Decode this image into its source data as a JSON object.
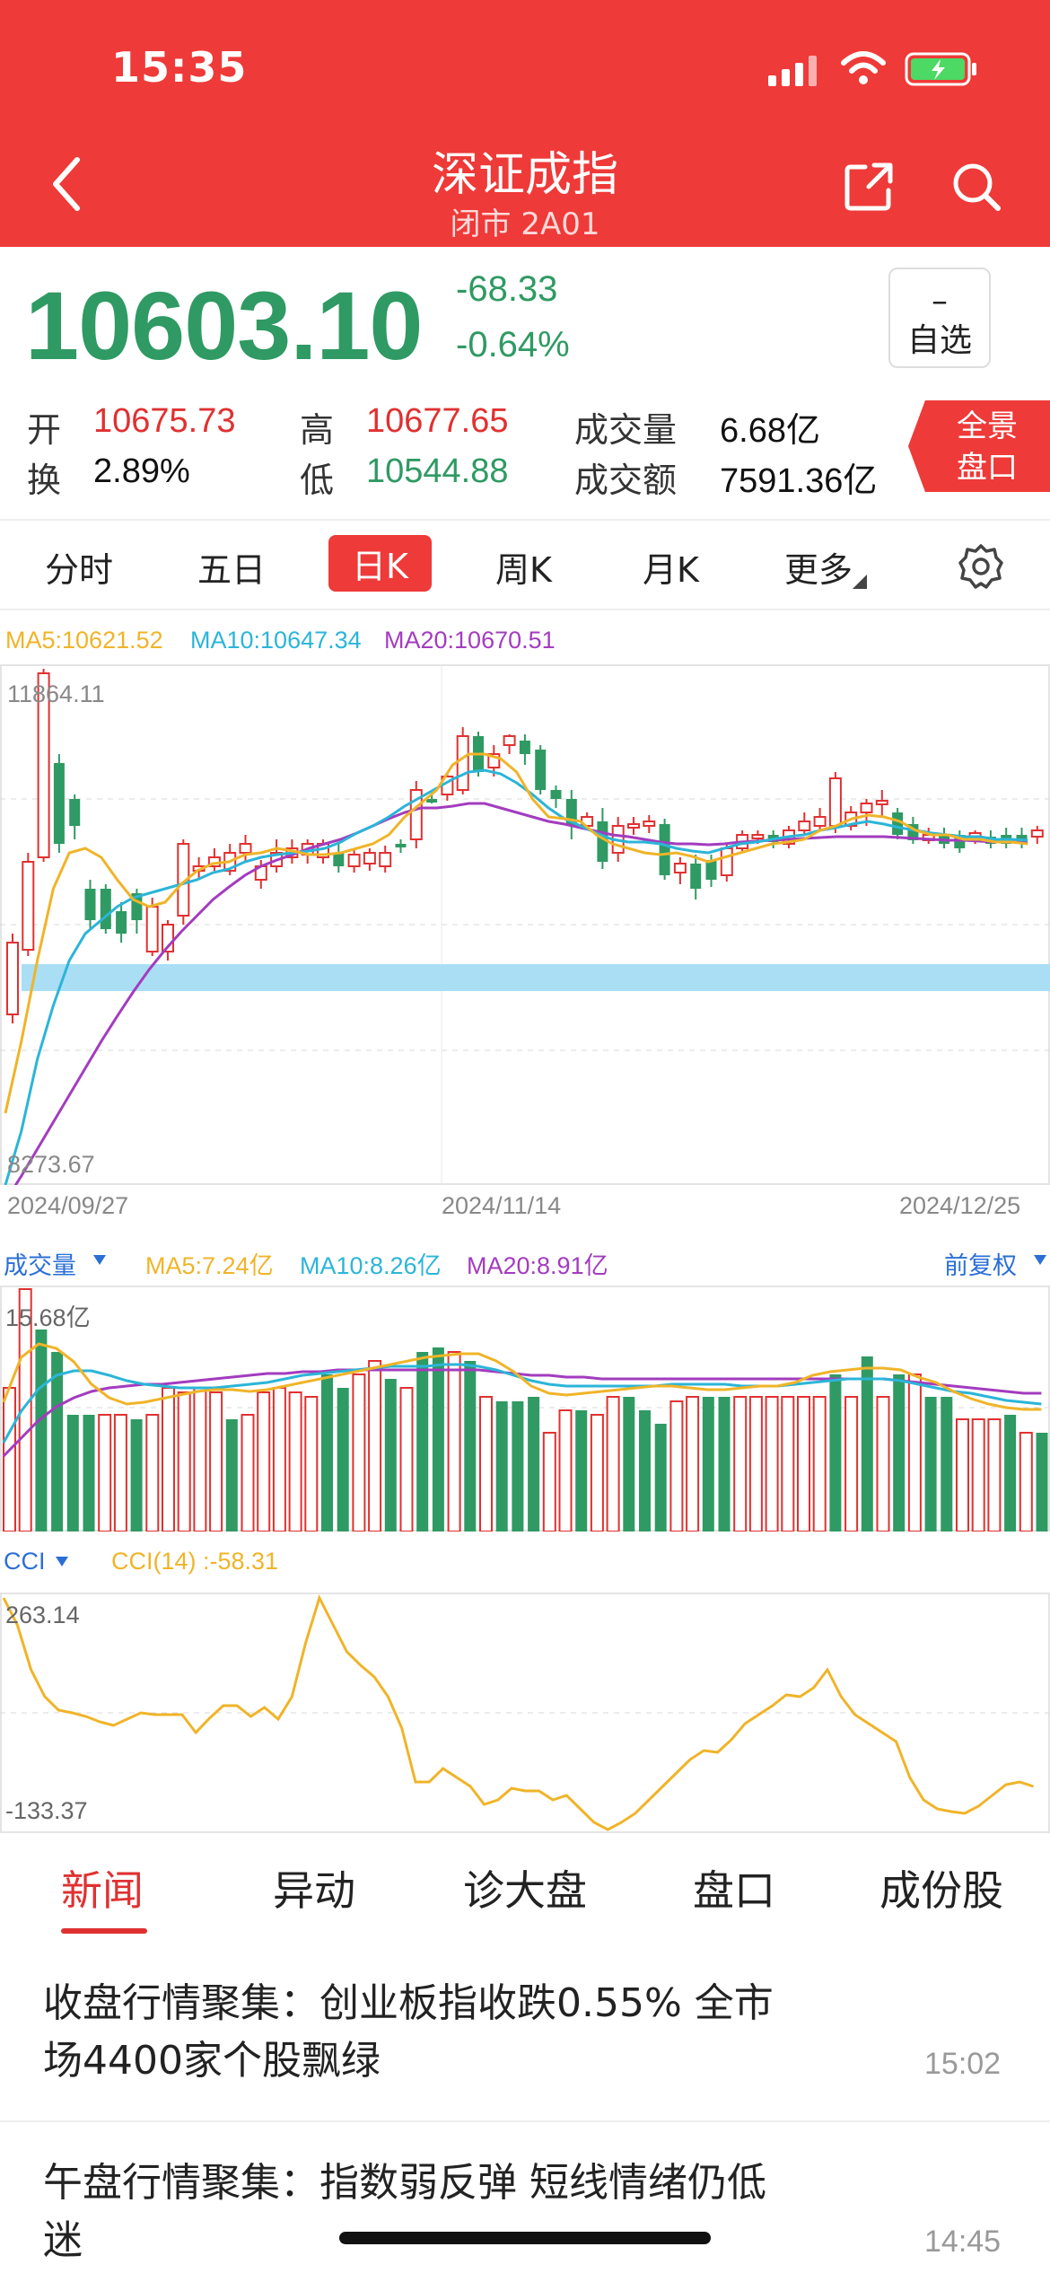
{
  "status_bar": {
    "time": "15:35"
  },
  "header": {
    "title": "深证成指",
    "subtitle": "闭市 2A01"
  },
  "quote": {
    "price": "10603.10",
    "change": "-68.33",
    "change_pct": "-0.64%",
    "watch_dash": "–",
    "watch_label": "自选",
    "open_label": "开",
    "open": "10675.73",
    "high_label": "高",
    "high": "10677.65",
    "volume_label": "成交量",
    "volume": "6.68亿",
    "turnover_label": "换",
    "turnover": "2.89%",
    "low_label": "低",
    "low": "10544.88",
    "amount_label": "成交额",
    "amount": "7591.36亿",
    "panorama_line1": "全景",
    "panorama_line2": "盘口"
  },
  "tabs": [
    "分时",
    "五日",
    "日K",
    "周K",
    "月K",
    "更多"
  ],
  "active_tab": "日K",
  "kline": {
    "ma5": "MA5:10621.52",
    "ma10": "MA10:10647.34",
    "ma20": "MA20:10670.51",
    "high_label": "11864.11",
    "low_label": "8273.67",
    "dates": [
      "2024/09/27",
      "2024/11/14",
      "2024/12/25"
    ]
  },
  "volume_panel": {
    "title": "成交量",
    "ma5": "MA5:7.24亿",
    "ma10": "MA10:8.26亿",
    "ma20": "MA20:8.91亿",
    "adjust": "前复权",
    "max_label": "15.68亿"
  },
  "cci_panel": {
    "title": "CCI",
    "value": "CCI(14) :-58.31",
    "max_label": "263.14",
    "min_label": "-133.37"
  },
  "news_tabs": [
    "新闻",
    "异动",
    "诊大盘",
    "盘口",
    "成份股"
  ],
  "news": [
    {
      "title": "收盘行情聚集：创业板指收跌0.55% 全市场4400家个股飘绿",
      "time": "15:02"
    },
    {
      "title": "午盘行情聚集：指数弱反弹 短线情绪仍低迷",
      "time": "14:45"
    }
  ],
  "colors": {
    "header": "#ee3a38",
    "up": "#e03131",
    "down": "#2f9a63",
    "ma5": "#f0b429",
    "ma10": "#2bb5d8",
    "ma20": "#a33cbf"
  }
}
